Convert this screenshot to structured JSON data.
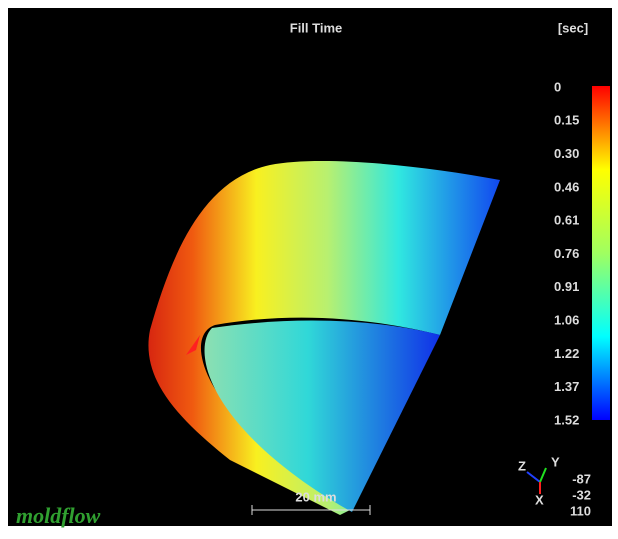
{
  "header": {
    "title": "Fill Time",
    "unit": "[sec]"
  },
  "legend": {
    "labels": [
      "0",
      "0.15",
      "0.30",
      "0.46",
      "0.61",
      "0.76",
      "0.91",
      "1.06",
      "1.22",
      "1.37",
      "1.52"
    ]
  },
  "scale_bar": {
    "label": "20 mm"
  },
  "axes": {
    "z": "Z",
    "y": "Y",
    "x": "X",
    "view": [
      "-87",
      "-32",
      "110"
    ]
  },
  "logo": {
    "text": "moldflow"
  }
}
